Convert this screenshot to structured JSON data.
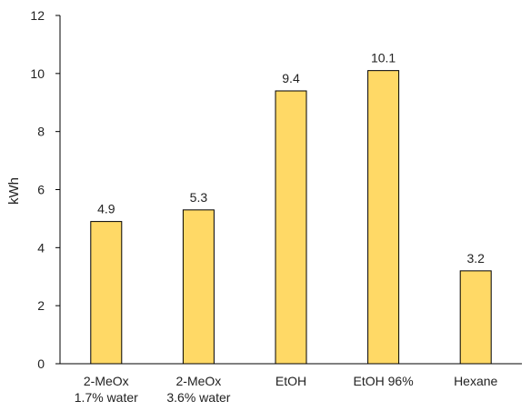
{
  "chart_data": {
    "type": "bar",
    "categories": [
      [
        "2-MeOx",
        "1.7% water"
      ],
      [
        "2-MeOx",
        "3.6% water"
      ],
      [
        "EtOH"
      ],
      [
        "EtOH 96%"
      ],
      [
        "Hexane"
      ]
    ],
    "values": [
      4.9,
      5.3,
      9.4,
      10.1,
      3.2
    ],
    "data_labels": [
      "4.9",
      "5.3",
      "9.4",
      "10.1",
      "3.2"
    ],
    "ylabel": "kWh",
    "ylim": [
      0,
      12
    ],
    "yticks": [
      "0",
      "2",
      "4",
      "6",
      "8",
      "10",
      "12"
    ],
    "grid": false,
    "legend": "none",
    "bar_color": "#FFD966",
    "bar_edge_color": "#000000"
  }
}
